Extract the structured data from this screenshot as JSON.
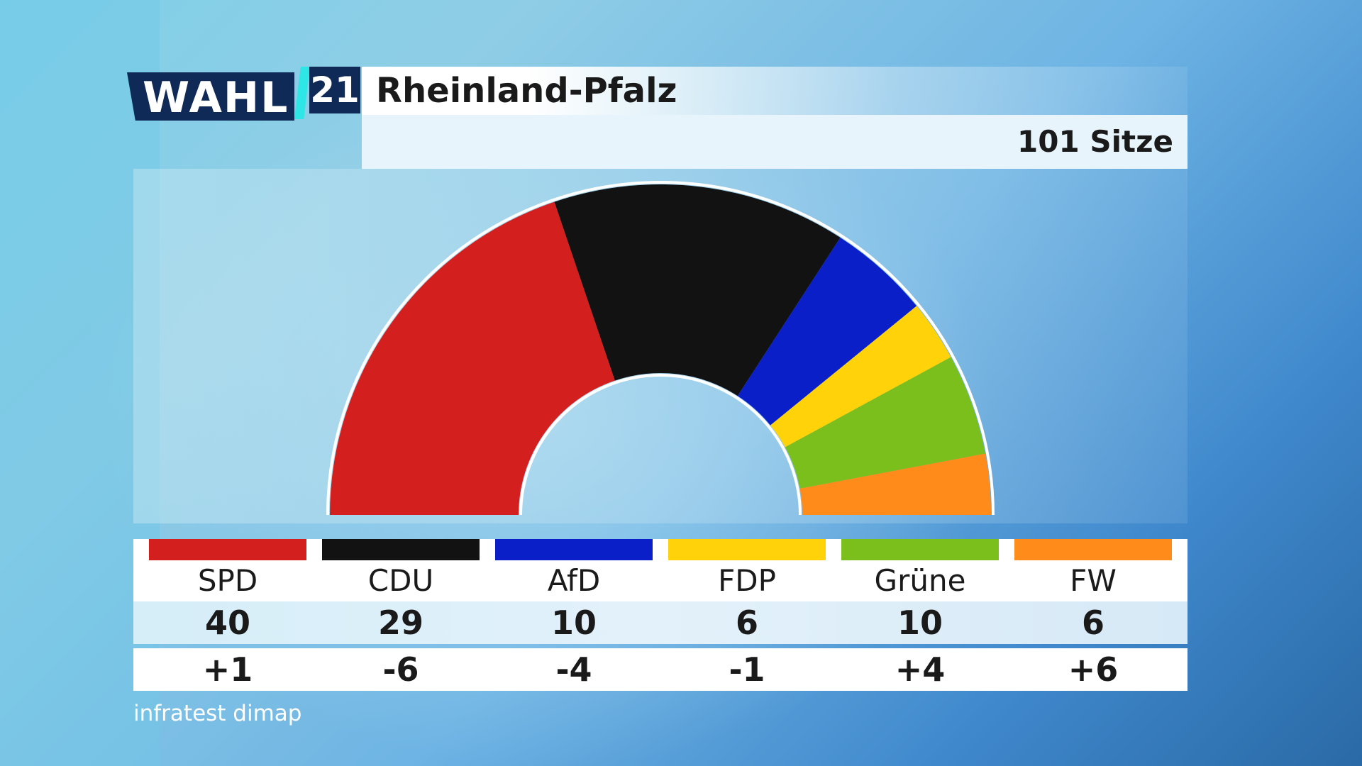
{
  "header": {
    "logo_text": "WAHL",
    "logo_year": "21",
    "title": "Rheinland-Pfalz",
    "total_seats_label": "101 Sitze"
  },
  "chart_data": {
    "type": "pie",
    "variant": "semicircle-parliament",
    "title": "Rheinland-Pfalz",
    "total": 101,
    "categories": [
      "SPD",
      "CDU",
      "AfD",
      "FDP",
      "Grüne",
      "FW"
    ],
    "values": [
      40,
      29,
      10,
      6,
      10,
      6
    ],
    "changes": [
      "+1",
      "-6",
      "-4",
      "-1",
      "+4",
      "+6"
    ],
    "colors": [
      "#d41f1f",
      "#121212",
      "#0a1fc8",
      "#ffd20a",
      "#7abf1c",
      "#ff8c1a"
    ]
  },
  "source": "infratest dimap"
}
